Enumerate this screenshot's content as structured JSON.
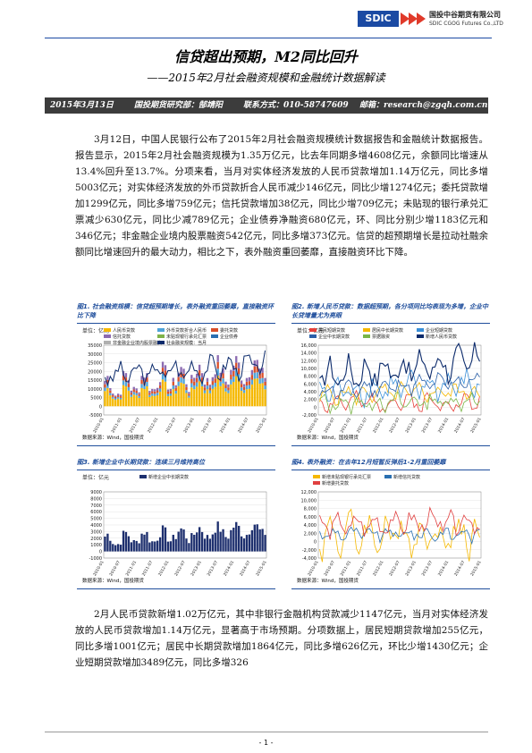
{
  "header": {
    "logo_mark": "SDIC",
    "company_cn": "国投中谷期货有限公司",
    "company_en": "SDIC CGOG Futures Co.,LTD",
    "title": "信贷超出预期，M2同比回升",
    "subtitle": "——2015年2月社会融资规模和金融统计数据解读",
    "date": "2015年3月13日",
    "dept": "国投期货研究部：郜靖阳",
    "contact": "联系方式：010-58747609",
    "email": "邮箱：research@zgqh.com.cn"
  },
  "body": {
    "para1": "3月12日，中国人民银行公布了2015年2月社会融资规模统计数据报告和金融统计数据报告。报告显示，2015年2月社会融资规模为1.35万亿元，比去年同期多增4608亿元，余额同比增速从13.4%回升至13.7%。分项来看，当月对实体经济发放的人民币贷款增加1.14万亿元，同比多增5003亿元；对实体经济发放的外币贷款折合人民币减少146亿元，同比少增1274亿元；委托贷款增加1299亿元，同比多增759亿元；信托贷款增加38亿元，同比少增709亿元；未贴现的银行承兑汇票减少630亿元，同比少减789亿元；企业债券净融资680亿元，环、同比分别少增1183亿元和346亿元；非金融企业境内股票融资542亿元，同比多增373亿元。信贷的超预期增长是拉动社融余额同比增速回升的最大动力，相比之下，表外融资重回萎靡，直接融资环比下降。",
    "para2": "2月人民币贷款新增1.02万亿元，其中非银行金融机构贷款减少1147亿元，当月对实体经济发放的人民币贷款增加1.14万亿元，显著高于市场预期。分项数据上，居民短期贷款增加255亿元，同比多增1001亿元；居民中长期贷款增加1864亿元，同比多增626亿元，环比少增1430亿元；企业短期贷款增加3489亿元，同比多增326"
  },
  "figures": [
    {
      "caption": "图1. 社会融资规模：信贷超预期增长，表外融资重回萎靡，直接融资环比下降",
      "unit": "单位：亿元",
      "legend": [
        "人民币贷款",
        "外币贷款折合人民币",
        "委托贷款",
        "信托贷款",
        "未贴现银行承兑汇票",
        "企业债券",
        "非金融企业境内股票融资",
        "社会融资规模：当月"
      ],
      "source": "数据来源：Wind，国投期货",
      "yticks": [
        "35000",
        "30000",
        "25000",
        "20000",
        "15000",
        "10000",
        "5000",
        "0",
        "-5000"
      ],
      "xticks": [
        "2010-01",
        "2011-01",
        "2011-07",
        "2012-01",
        "2012-07",
        "2013-01",
        "2013-07",
        "2014-01",
        "2014-07",
        "2015-01"
      ]
    },
    {
      "caption": "图2. 新增人民币贷款：数据超预期，各分项同比均表现为多增，企业中长贷增量尤为亮眼",
      "unit": "单位：亿元",
      "legend": [
        "居民短期贷款",
        "居民中长期贷款",
        "企业短期贷款",
        "企业中长期贷款",
        "票据融资",
        "新增人民币贷款"
      ],
      "source": "数据来源：Wind，国投期货",
      "yticks": [
        "16,000",
        "14,000",
        "12,000",
        "10,000",
        "8,000",
        "6,000",
        "4,000",
        "2,000",
        "0",
        "-2,000"
      ],
      "xticks": [
        "2010-01",
        "2010-07",
        "2011-01",
        "2011-07",
        "2012-01",
        "2012-07",
        "2013-01",
        "2013-07",
        "2014-01",
        "2014-07",
        "2015-01"
      ]
    },
    {
      "caption": "图3. 新增企业中长期贷款：连续三月维持高位",
      "unit": "单位：亿元",
      "legend": [
        "新增企业中长期贷款"
      ],
      "source": "数据来源：Wind，国投期货",
      "yticks": [
        "9000",
        "8000",
        "7000",
        "6000",
        "5000",
        "4000",
        "3000",
        "2000",
        "1000",
        "0",
        "-1000"
      ],
      "xticks": [
        "2010-01",
        "2010-07",
        "2011-01",
        "2011-07",
        "2012-01",
        "2012-07",
        "2013-01",
        "2013-07",
        "2014-01",
        "2014-07",
        "2015-01"
      ]
    },
    {
      "caption": "图4. 表外融资：在去年12月短暂反弹后1-2月重回萎靡",
      "unit": "",
      "legend": [
        "新增未贴现银行承兑汇票",
        "新增信托贷款",
        "新增委托贷款"
      ],
      "source": "数据来源：Wind，国投期货",
      "yticks": [
        "12,000",
        "10,000",
        "8,000",
        "6,000",
        "4,000",
        "2,000",
        "0",
        "-2,000",
        "-4,000"
      ],
      "xticks": [
        "2010-01",
        "2010-07",
        "2011-01",
        "2011-07",
        "2012-01",
        "2012-07",
        "2013-01",
        "2013-07",
        "2014-01",
        "2014-07",
        "2015-01"
      ]
    }
  ],
  "colors": {
    "brand": "#1b4aa3",
    "caption": "#1f4e9c",
    "infobar": "#3c3c3c",
    "fig1_series": [
      "#f5b800",
      "#4fa3d9",
      "#d94f2a",
      "#8c6bb1",
      "#7fb24a",
      "#2a6fb0",
      "#b0b0b0",
      "#0b2a6b"
    ],
    "fig2_series": [
      "#e6403a",
      "#f5b800",
      "#3a8fd8",
      "#2a5fa8",
      "#7ab648",
      "#0b2a6b"
    ],
    "fig3_series": [
      "#1d2f6e"
    ],
    "fig4_series": [
      "#f5b800",
      "#2a6fb0",
      "#e04040"
    ]
  },
  "footer": {
    "page": "- 1 -"
  }
}
